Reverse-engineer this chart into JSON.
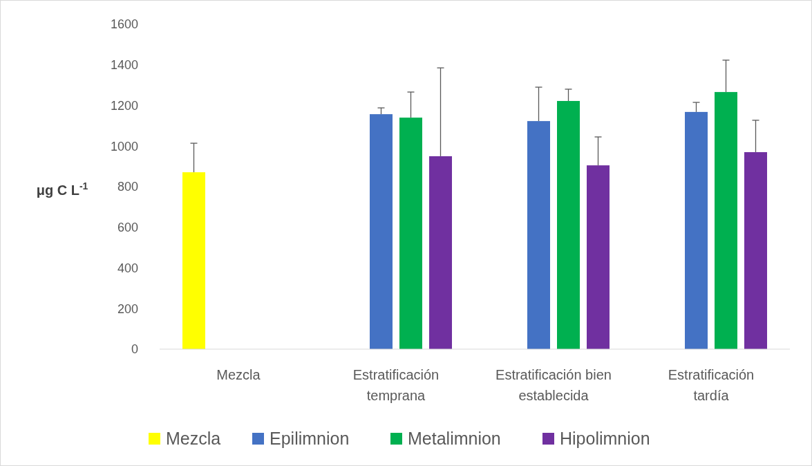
{
  "chart_data": {
    "type": "bar",
    "ylabel": "μg C L$^{-1}$",
    "categories": [
      "Mezcla",
      "Estratificación temprana",
      "Estratificación bien establecida",
      "Estratificación tardía"
    ],
    "series": [
      {
        "name": "Mezcla",
        "color": "#ffff00",
        "values": [
          871,
          null,
          null,
          null
        ],
        "errors": [
          [
            871,
            1014
          ],
          null,
          null,
          null
        ]
      },
      {
        "name": "Epilimnion",
        "color": "#4472c4",
        "values": [
          null,
          1157,
          1123,
          1168
        ],
        "errors": [
          null,
          [
            1157,
            1188
          ],
          [
            1123,
            1290
          ],
          [
            1168,
            1215
          ]
        ]
      },
      {
        "name": "Metalimnion",
        "color": "#00b050",
        "values": [
          null,
          1140,
          1222,
          1266
        ],
        "errors": [
          null,
          [
            1140,
            1266
          ],
          [
            1222,
            1280
          ],
          [
            1266,
            1423
          ]
        ]
      },
      {
        "name": "Hipolimnion",
        "color": "#7030a0",
        "values": [
          null,
          950,
          905,
          970
        ],
        "errors": [
          null,
          [
            950,
            1385
          ],
          [
            905,
            1045
          ],
          [
            970,
            1127
          ]
        ]
      }
    ],
    "ylim": [
      0,
      1600
    ],
    "yticks": [
      0,
      200,
      400,
      600,
      800,
      1000,
      1200,
      1400,
      1600
    ],
    "grid": false,
    "legend": "bottom"
  }
}
